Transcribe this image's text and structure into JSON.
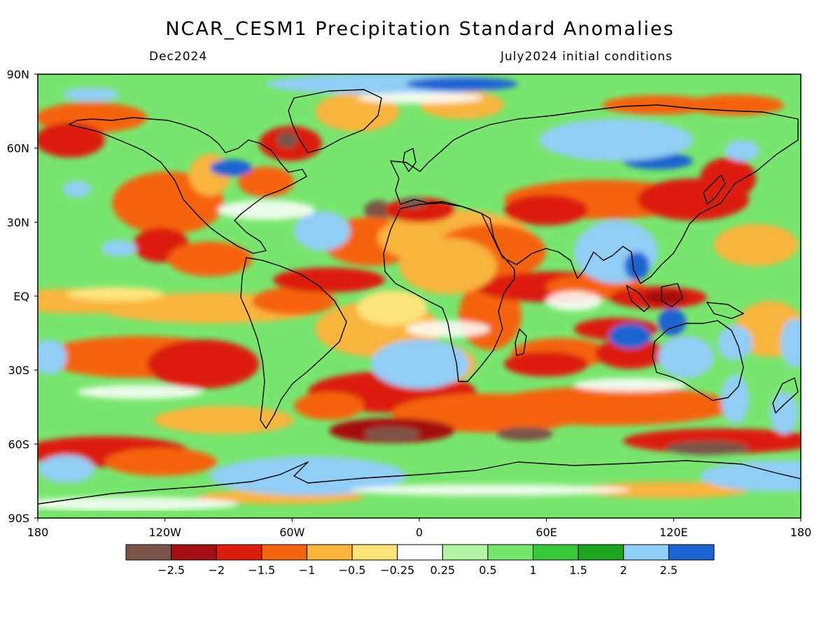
{
  "title": "NCAR_CESM1 Precipitation Standard Anomalies",
  "subtitle_left": "Dec2024",
  "subtitle_right": "July2024 initial conditions",
  "lat_labels": [
    "90N",
    "60N",
    "30N",
    "EQ",
    "30S",
    "60S",
    "90S"
  ],
  "lon_labels": [
    "180",
    "120W",
    "60W",
    "0",
    "60E",
    "120E",
    "180"
  ],
  "colorbar": {
    "colors": [
      "#7a5548",
      "#a50f0f",
      "#dc1e0f",
      "#f5640f",
      "#f9b43c",
      "#fde47a",
      "#ffffff",
      "#b4f5a5",
      "#78e66e",
      "#37c83c",
      "#1ea51e",
      "#91cdf5",
      "#1e64d2"
    ],
    "tick_labels": [
      "−2.5",
      "−2",
      "−1.5",
      "−1",
      "−0.5",
      "−0.25",
      "0.25",
      "0.5",
      "1",
      "1.5",
      "2",
      "2.5"
    ]
  },
  "map_style": {
    "frame_color": "#000000",
    "coastline_color": "#000000"
  }
}
